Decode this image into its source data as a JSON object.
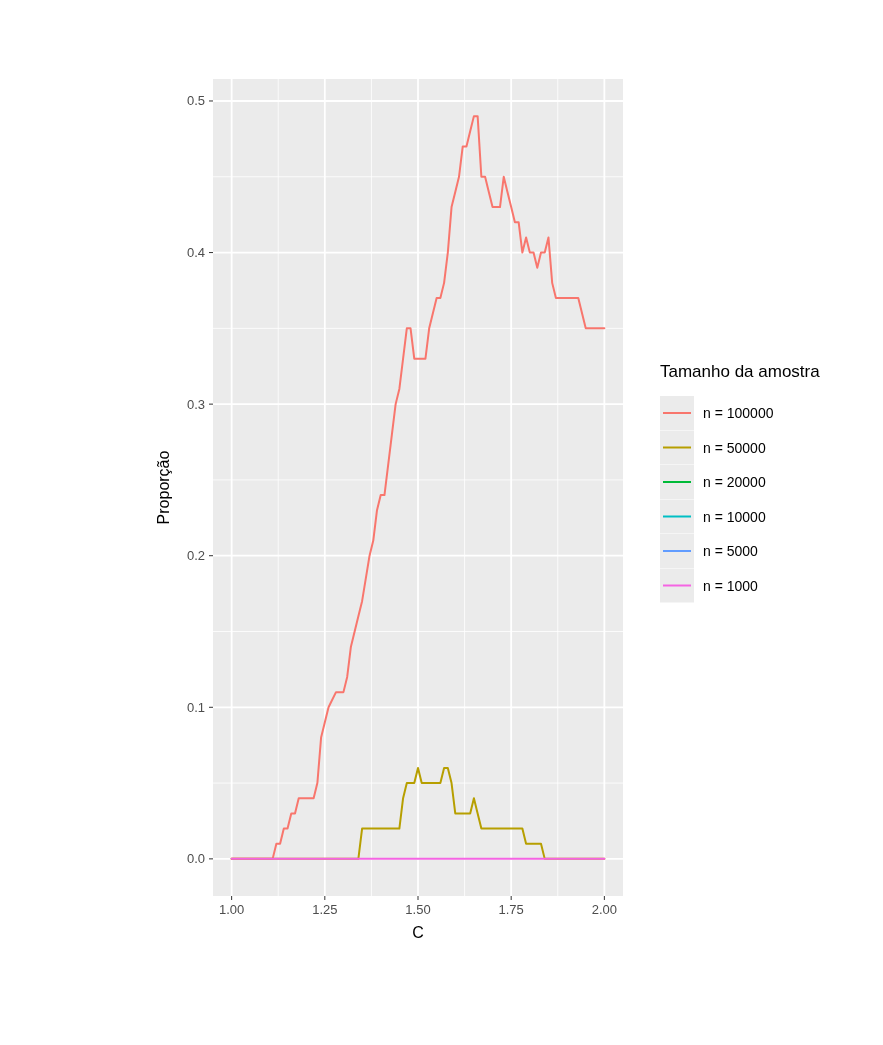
{
  "chart_data": {
    "type": "line",
    "xlabel": "C",
    "ylabel": "Proporção",
    "legend_title": "Tamanho da amostra",
    "legend": "right",
    "grid": true,
    "xlim": [
      0.95,
      2.05
    ],
    "xticks": [
      {
        "value": 1,
        "label": "1.00"
      },
      {
        "value": 1.25,
        "label": "1.25"
      },
      {
        "value": 1.5,
        "label": "1.50"
      },
      {
        "value": 1.75,
        "label": "1.75"
      },
      {
        "value": 2,
        "label": "2.00"
      }
    ],
    "ylim": [
      -0.0245,
      0.5145
    ],
    "yticks": [
      {
        "value": 0,
        "label": "0.0"
      },
      {
        "value": 0.1,
        "label": "0.1"
      },
      {
        "value": 0.2,
        "label": "0.2"
      },
      {
        "value": 0.3,
        "label": "0.3"
      },
      {
        "value": 0.4,
        "label": "0.4"
      },
      {
        "value": 0.5,
        "label": "0.5"
      }
    ],
    "series": [
      {
        "name": "n = 100000",
        "color": "#f8766d",
        "x": [
          1,
          1.11,
          1.12,
          1.13,
          1.14,
          1.15,
          1.16,
          1.17,
          1.18,
          1.22,
          1.23,
          1.24,
          1.26,
          1.28,
          1.3,
          1.31,
          1.32,
          1.34,
          1.35,
          1.37,
          1.38,
          1.39,
          1.4,
          1.41,
          1.43,
          1.44,
          1.45,
          1.46,
          1.47,
          1.48,
          1.49,
          1.51,
          1.52,
          1.53,
          1.55,
          1.56,
          1.57,
          1.58,
          1.59,
          1.6,
          1.61,
          1.62,
          1.63,
          1.64,
          1.65,
          1.66,
          1.67,
          1.68,
          1.69,
          1.7,
          1.71,
          1.72,
          1.73,
          1.74,
          1.75,
          1.76,
          1.77,
          1.78,
          1.79,
          1.8,
          1.81,
          1.82,
          1.83,
          1.84,
          1.85,
          1.86,
          1.87,
          1.93,
          1.95,
          2
        ],
        "values": [
          0,
          0,
          0.01,
          0.01,
          0.02,
          0.02,
          0.03,
          0.03,
          0.04,
          0.04,
          0.05,
          0.08,
          0.1,
          0.11,
          0.11,
          0.12,
          0.14,
          0.16,
          0.17,
          0.2,
          0.21,
          0.23,
          0.24,
          0.24,
          0.28,
          0.3,
          0.31,
          0.33,
          0.35,
          0.35,
          0.33,
          0.33,
          0.33,
          0.35,
          0.37,
          0.37,
          0.38,
          0.4,
          0.43,
          0.44,
          0.45,
          0.47,
          0.47,
          0.48,
          0.49,
          0.49,
          0.45,
          0.45,
          0.44,
          0.43,
          0.43,
          0.43,
          0.45,
          0.44,
          0.43,
          0.42,
          0.42,
          0.4,
          0.41,
          0.4,
          0.4,
          0.39,
          0.4,
          0.4,
          0.41,
          0.38,
          0.37,
          0.37,
          0.35,
          0.35
        ]
      },
      {
        "name": "n = 50000",
        "color": "#b79f00",
        "x": [
          1,
          1.34,
          1.35,
          1.45,
          1.46,
          1.47,
          1.49,
          1.5,
          1.51,
          1.56,
          1.57,
          1.58,
          1.59,
          1.6,
          1.64,
          1.65,
          1.66,
          1.67,
          1.78,
          1.79,
          1.83,
          1.84,
          2
        ],
        "values": [
          0,
          0,
          0.02,
          0.02,
          0.04,
          0.05,
          0.05,
          0.06,
          0.05,
          0.05,
          0.06,
          0.06,
          0.05,
          0.03,
          0.03,
          0.04,
          0.03,
          0.02,
          0.02,
          0.01,
          0.01,
          0,
          0
        ]
      },
      {
        "name": "n = 20000",
        "color": "#00ba38"
      },
      {
        "name": "n = 10000",
        "color": "#00bfc4"
      },
      {
        "name": "n = 5000",
        "color": "#619cff"
      },
      {
        "name": "n = 1000",
        "color": "#f564e3",
        "x": [
          1,
          2
        ],
        "values": [
          0,
          0
        ]
      }
    ]
  }
}
